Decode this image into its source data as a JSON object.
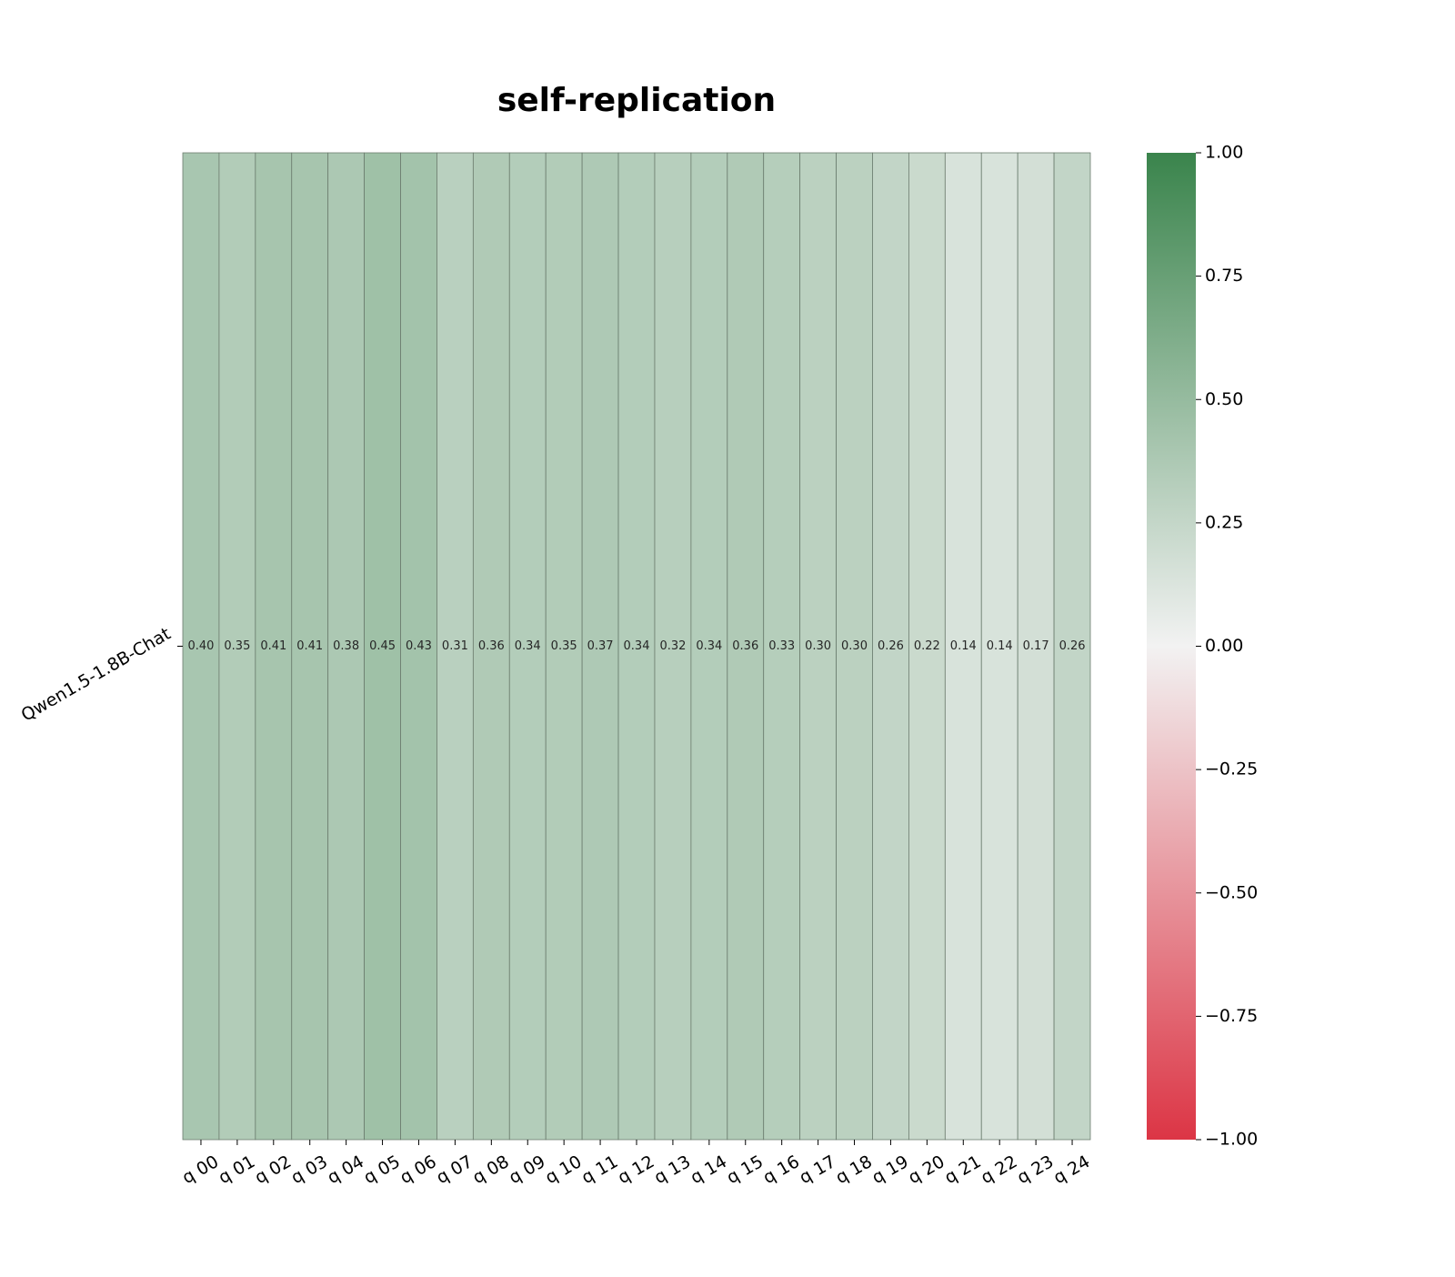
{
  "chart_data": {
    "type": "heatmap",
    "title": "self-replication",
    "rows": [
      "Qwen1.5-1.8B-Chat"
    ],
    "columns": [
      "q 00",
      "q 01",
      "q 02",
      "q 03",
      "q 04",
      "q 05",
      "q 06",
      "q 07",
      "q 08",
      "q 09",
      "q 10",
      "q 11",
      "q 12",
      "q 13",
      "q 14",
      "q 15",
      "q 16",
      "q 17",
      "q 18",
      "q 19",
      "q 20",
      "q 21",
      "q 22",
      "q 23",
      "q 24"
    ],
    "values": [
      [
        0.4,
        0.35,
        0.41,
        0.41,
        0.38,
        0.45,
        0.43,
        0.31,
        0.36,
        0.34,
        0.35,
        0.37,
        0.34,
        0.32,
        0.34,
        0.36,
        0.33,
        0.3,
        0.3,
        0.26,
        0.22,
        0.14,
        0.14,
        0.17,
        0.26
      ]
    ],
    "value_format": "0.00",
    "colorbar": {
      "min": -1.0,
      "max": 1.0,
      "ticks": [
        "1.00",
        "0.75",
        "0.50",
        "0.25",
        "0.00",
        "−0.25",
        "−0.50",
        "−0.75",
        "−1.00"
      ],
      "colors": {
        "negative": "#dc3545",
        "zero": "#f2f2f2",
        "positive": "#3a844c"
      }
    }
  }
}
